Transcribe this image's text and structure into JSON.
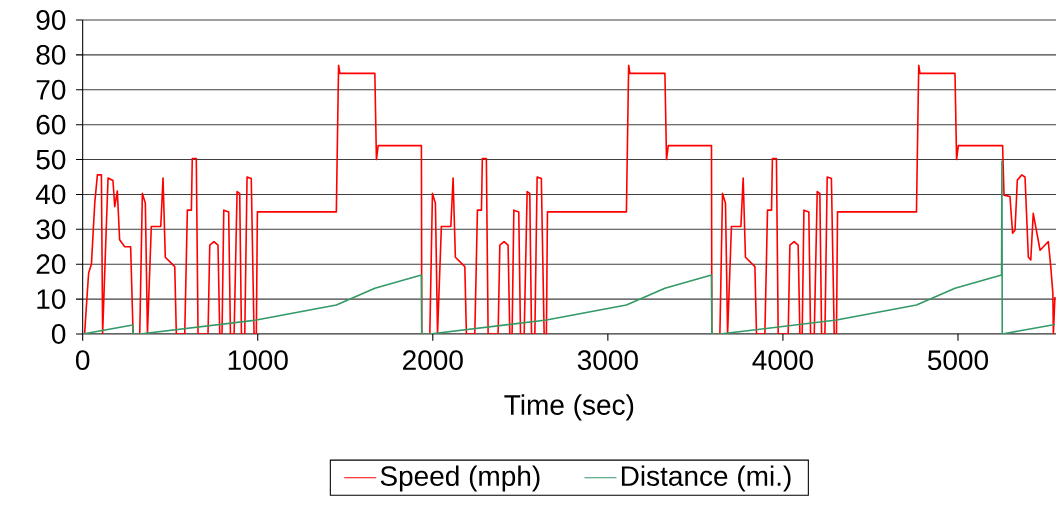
{
  "chart_data": {
    "type": "line",
    "xlabel": "Time (sec)",
    "xlim": [
      0,
      5560
    ],
    "ylim": [
      0,
      90
    ],
    "xticks": [
      0,
      1000,
      2000,
      3000,
      4000,
      5000
    ],
    "yticks": [
      0,
      10,
      20,
      30,
      40,
      50,
      60,
      70,
      80,
      90
    ],
    "grid": "y",
    "legend": "bottom",
    "marker": "none",
    "line_style": "solid",
    "series": [
      {
        "name": "Speed (mph)",
        "color": "#ff0000",
        "x": [
          0,
          11,
          21,
          34,
          50,
          69,
          84,
          107,
          114,
          135,
          145,
          173,
          183,
          198,
          211,
          240,
          274,
          288,
          326,
          341,
          358,
          370,
          392,
          446,
          459,
          472,
          526,
          535,
          583,
          598,
          621,
          626,
          649,
          659,
          716,
          726,
          750,
          773,
          783,
          796,
          806,
          834,
          844,
          865,
          882,
          897,
          907,
          926,
          939,
          963,
          979,
          992,
          998,
          1449,
          1459,
          1462,
          1469,
          1669,
          1678,
          1688,
          1935,
          1937,
          1983,
          1998,
          2015,
          2027,
          2049,
          2103,
          2116,
          2129,
          2183,
          2192,
          2240,
          2255,
          2278,
          2283,
          2306,
          2316,
          2373,
          2383,
          2407,
          2430,
          2440,
          2453,
          2463,
          2491,
          2501,
          2522,
          2539,
          2554,
          2564,
          2583,
          2596,
          2620,
          2636,
          2649,
          2655,
          3106,
          3116,
          3119,
          3126,
          3326,
          3335,
          3345,
          3592,
          3594,
          3640,
          3655,
          3672,
          3684,
          3706,
          3760,
          3773,
          3786,
          3840,
          3849,
          3897,
          3912,
          3935,
          3940,
          3963,
          3973,
          4030,
          4040,
          4064,
          4087,
          4097,
          4110,
          4120,
          4148,
          4158,
          4179,
          4196,
          4211,
          4221,
          4240,
          4253,
          4277,
          4293,
          4306,
          4312,
          4763,
          4773,
          4776,
          4783,
          4983,
          4992,
          5002,
          5249,
          5255,
          5263,
          5297,
          5312,
          5326,
          5339,
          5364,
          5383,
          5402,
          5416,
          5430,
          5469,
          5516,
          5530,
          5542,
          5545,
          5554
        ],
        "values": [
          0,
          0,
          7.8,
          17.5,
          20,
          37.5,
          45.6,
          45.6,
          0,
          30.8,
          44.7,
          44,
          36.5,
          41,
          27,
          25,
          25,
          0,
          0,
          40.3,
          37.5,
          0,
          30.8,
          30.8,
          44.7,
          22,
          19.3,
          0,
          0,
          35.5,
          35.5,
          50.3,
          50.3,
          0,
          0,
          25.5,
          26.5,
          25.5,
          0,
          0,
          35.5,
          35,
          0,
          0,
          40.8,
          40.3,
          0,
          0,
          45,
          44.6,
          0,
          0,
          35,
          35,
          68,
          77,
          74.7,
          74.7,
          50,
          54,
          54,
          0,
          0,
          40.3,
          37.5,
          0,
          30.8,
          30.8,
          44.7,
          22,
          19.3,
          0,
          0,
          35.5,
          35.5,
          50.3,
          50.3,
          0,
          0,
          25.5,
          26.5,
          25.5,
          0,
          0,
          35.5,
          35,
          0,
          0,
          40.8,
          40.3,
          0,
          0,
          45,
          44.6,
          0,
          0,
          35,
          35,
          68,
          77,
          74.7,
          74.7,
          50,
          54,
          54,
          0,
          0,
          40.3,
          37.5,
          0,
          30.8,
          30.8,
          44.7,
          22,
          19.3,
          0,
          0,
          35.5,
          35.5,
          50.3,
          50.3,
          0,
          0,
          25.5,
          26.5,
          25.5,
          0,
          0,
          35.5,
          35,
          0,
          0,
          40.8,
          40.3,
          0,
          0,
          45,
          44.6,
          0,
          0,
          35,
          35,
          68,
          77,
          74.7,
          74.7,
          50,
          54,
          54,
          54,
          39.8,
          39.4,
          28.9,
          29.8,
          44.1,
          45.6,
          45,
          22.1,
          21.2,
          34.6,
          24,
          26.5,
          19.3,
          11.7,
          0,
          10.6
        ]
      },
      {
        "name": "Distance (mi.)",
        "color": "#339966",
        "x": [
          0,
          286,
          288,
          326,
          992,
          1449,
          1669,
          1935,
          1937,
          1983,
          2649,
          3106,
          3326,
          3592,
          3594,
          3640,
          4306,
          4763,
          4983,
          5249,
          5251,
          5253,
          5554
        ],
        "values": [
          0,
          2.6,
          0,
          0,
          4.0,
          8.3,
          13.1,
          16.9,
          0,
          0,
          4.0,
          8.3,
          13.1,
          16.9,
          0,
          0,
          4.0,
          8.3,
          13.1,
          16.9,
          49.5,
          0,
          2.7
        ]
      }
    ]
  }
}
